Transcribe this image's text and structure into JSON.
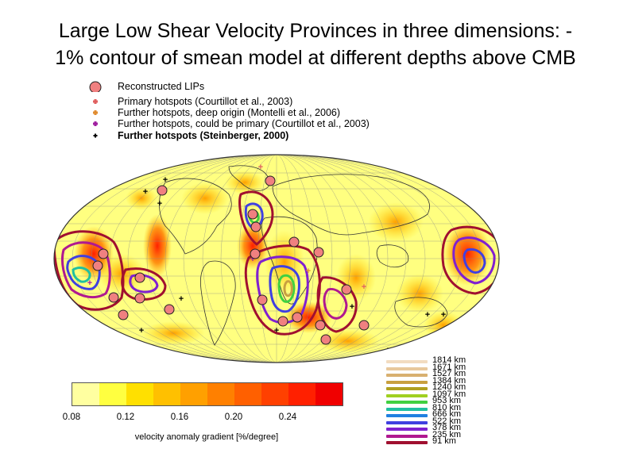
{
  "title_line1": "Large Low Shear Velocity Provinces in three dimensions: -",
  "title_line2": "1% contour of smean model at different depths above CMB",
  "legend": [
    {
      "label": "Reconstructed LIPs",
      "symbol": "lip-circle-icon",
      "color": "#f08080",
      "bold": false
    },
    {
      "label": "Primary hotspots (Courtillot et al., 2003)",
      "symbol": "plus-icon",
      "color": "#e06060",
      "bold": false
    },
    {
      "label": "Further hotspots, deep origin (Montelli et al., 2006)",
      "symbol": "plus-icon",
      "color": "#e08c30",
      "bold": false
    },
    {
      "label": "Further hotspots, could be primary (Courtillot et al., 2003)",
      "symbol": "plus-icon",
      "color": "#a020a0",
      "bold": false
    },
    {
      "label": "Further hotspots (Steinberger, 2000)",
      "symbol": "plus-icon",
      "color": "#000000",
      "bold": true
    }
  ],
  "colorbar": {
    "colors": [
      "#ffffa0",
      "#ffff40",
      "#ffe000",
      "#ffc000",
      "#ffa000",
      "#ff8000",
      "#ff6000",
      "#ff4000",
      "#ff2000",
      "#f00000"
    ],
    "ticks": [
      "0.08",
      "0.12",
      "0.16",
      "0.20",
      "0.24"
    ],
    "label": "velocity anomaly gradient [%/degree]"
  },
  "depths": [
    {
      "label": "1814 km",
      "color": "#f2dcc0"
    },
    {
      "label": "1671 km",
      "color": "#e8c89c"
    },
    {
      "label": "1527 km",
      "color": "#d8b070"
    },
    {
      "label": "1384 km",
      "color": "#c8a040"
    },
    {
      "label": "1240 km",
      "color": "#b0a020"
    },
    {
      "label": "1097 km",
      "color": "#a0d020"
    },
    {
      "label": "953 km",
      "color": "#40d040"
    },
    {
      "label": "810 km",
      "color": "#20c0a0"
    },
    {
      "label": "666 km",
      "color": "#2080e0"
    },
    {
      "label": "522 km",
      "color": "#4040e0"
    },
    {
      "label": "378 km",
      "color": "#8020d0"
    },
    {
      "label": "235 km",
      "color": "#b01890"
    },
    {
      "label": "91 km",
      "color": "#a01030"
    }
  ]
}
